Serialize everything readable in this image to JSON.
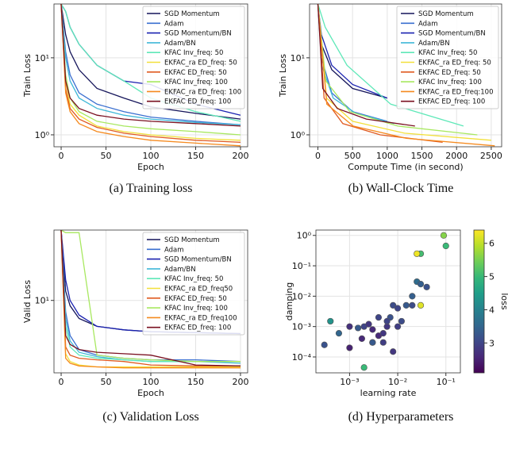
{
  "chart_data": [
    {
      "type": "line",
      "caption": "(a) Training loss",
      "xlabel": "Epoch",
      "ylabel": "Train Loss",
      "yscale": "log",
      "grid": true,
      "legend": "upper right",
      "xlim": [
        -8,
        208
      ],
      "xticks": [
        0,
        50,
        100,
        150,
        200
      ],
      "ylim": [
        0.7,
        50
      ],
      "yticks": [
        {
          "value": 1,
          "label": "10⁰"
        },
        {
          "value": 10,
          "label": "10¹"
        }
      ],
      "x": [
        0,
        5,
        10,
        20,
        40,
        70,
        100,
        150,
        200
      ],
      "series": [
        {
          "name": "SGD Momentum",
          "color": "#14145a",
          "values": [
            50,
            20,
            12,
            7,
            4,
            3,
            2.3,
            1.9,
            1.6
          ]
        },
        {
          "name": "Adam",
          "color": "#3a6fd0",
          "values": [
            50,
            12,
            6,
            3.5,
            2.5,
            2,
            1.7,
            1.5,
            1.35
          ]
        },
        {
          "name": "SGD Momentum/BN",
          "color": "#1a22b0",
          "values": [
            50,
            40,
            25,
            15,
            8,
            5,
            4.5,
            2.5,
            1.8
          ]
        },
        {
          "name": "Adam/BN",
          "color": "#40b8d8",
          "values": [
            50,
            10,
            5,
            3,
            2.2,
            1.8,
            1.6,
            1.45,
            1.35
          ]
        },
        {
          "name": "KFAC Inv_freq: 50",
          "color": "#5ee8b8",
          "values": [
            50,
            40,
            25,
            15,
            8,
            5,
            3,
            2,
            1.5
          ]
        },
        {
          "name": "EKFAC_ra ED_freq: 50",
          "color": "#f2e03a",
          "values": [
            50,
            5,
            2.5,
            1.8,
            1.3,
            1.1,
            1,
            0.9,
            0.85
          ]
        },
        {
          "name": "EKFAC ED_freq: 50",
          "color": "#e05a20",
          "values": [
            50,
            4,
            2.2,
            1.6,
            1.25,
            1.05,
            0.95,
            0.85,
            0.8
          ]
        },
        {
          "name": "KFAC Inv_freq: 100",
          "color": "#a8e860",
          "values": [
            50,
            6,
            3,
            2,
            1.5,
            1.3,
            1.2,
            1.1,
            1
          ]
        },
        {
          "name": "EKFAC_ra ED_freq: 100",
          "color": "#f58a1f",
          "values": [
            50,
            3.5,
            2,
            1.4,
            1.1,
            0.95,
            0.85,
            0.78,
            0.72
          ]
        },
        {
          "name": "EKFAC ED_freq: 100",
          "color": "#7a1020",
          "values": [
            50,
            5,
            3,
            2.2,
            1.8,
            1.6,
            1.5,
            1.4,
            1.3
          ]
        }
      ]
    },
    {
      "type": "line",
      "caption": "(b) Wall-Clock Time",
      "xlabel": "Compute Time (in second)",
      "ylabel": "Train Loss",
      "yscale": "log",
      "grid": true,
      "legend": "upper right",
      "xlim": [
        -120,
        2650
      ],
      "xticks": [
        0,
        500,
        1000,
        1500,
        2000,
        2500
      ],
      "ylim": [
        0.7,
        50
      ],
      "yticks": [
        {
          "value": 1,
          "label": "10⁰"
        },
        {
          "value": 10,
          "label": "10¹"
        }
      ],
      "series": [
        {
          "name": "SGD Momentum",
          "color": "#14145a",
          "x": [
            0,
            50,
            200,
            500,
            1000
          ],
          "values": [
            50,
            15,
            7,
            4,
            3
          ]
        },
        {
          "name": "Adam",
          "color": "#3a6fd0",
          "x": [
            0,
            50,
            200,
            500,
            1000
          ],
          "values": [
            50,
            10,
            3.5,
            2,
            1.5
          ]
        },
        {
          "name": "SGD Momentum/BN",
          "color": "#1a22b0",
          "x": [
            0,
            50,
            200,
            500,
            1000
          ],
          "values": [
            50,
            20,
            8,
            4.5,
            3
          ]
        },
        {
          "name": "Adam/BN",
          "color": "#40b8d8",
          "x": [
            0,
            55,
            220,
            550,
            1100
          ],
          "values": [
            50,
            8,
            3,
            1.9,
            1.4
          ]
        },
        {
          "name": "KFAC Inv_freq: 50",
          "color": "#5ee8b8",
          "x": [
            0,
            105,
            420,
            1050,
            2100
          ],
          "values": [
            50,
            25,
            8,
            2.5,
            1.3
          ]
        },
        {
          "name": "EKFAC_ra ED_freq: 50",
          "color": "#f2e03a",
          "x": [
            0,
            125,
            500,
            1250,
            2500
          ],
          "values": [
            50,
            3,
            1.5,
            1.05,
            0.85
          ]
        },
        {
          "name": "EKFAC ED_freq: 50",
          "color": "#e05a20",
          "x": [
            0,
            90,
            360,
            900,
            1800
          ],
          "values": [
            50,
            3,
            1.4,
            1.0,
            0.8
          ]
        },
        {
          "name": "KFAC Inv_freq: 100",
          "color": "#a8e860",
          "x": [
            0,
            115,
            460,
            1150,
            2300
          ],
          "values": [
            50,
            5,
            2,
            1.3,
            1
          ]
        },
        {
          "name": "EKFAC_ra ED_freq:100",
          "color": "#f58a1f",
          "x": [
            0,
            128,
            510,
            1275,
            2550
          ],
          "values": [
            50,
            2.5,
            1.3,
            0.9,
            0.72
          ]
        },
        {
          "name": "EKFAC ED_freq: 100",
          "color": "#7a1020",
          "x": [
            0,
            70,
            280,
            700,
            1400
          ],
          "values": [
            50,
            4,
            2.2,
            1.6,
            1.3
          ]
        }
      ]
    },
    {
      "type": "line",
      "caption": "(c) Validation Loss",
      "xlabel": "Epoch",
      "ylabel": "Valid Loss",
      "yscale": "log",
      "grid": true,
      "legend": "upper right",
      "xlim": [
        -8,
        208
      ],
      "xticks": [
        0,
        50,
        100,
        150,
        200
      ],
      "ylim": [
        2.4,
        40
      ],
      "yticks": [
        {
          "value": 10,
          "label": "10¹"
        }
      ],
      "x": [
        0,
        5,
        10,
        20,
        40,
        70,
        100,
        150,
        200
      ],
      "series": [
        {
          "name": "SGD Momentum",
          "color": "#14145a",
          "values": [
            40,
            12,
            9,
            7,
            6,
            5.6,
            5.4,
            5.3,
            5.2
          ]
        },
        {
          "name": "Adam",
          "color": "#3a6fd0",
          "values": [
            40,
            8,
            5,
            3.8,
            3.4,
            3.2,
            3.1,
            3.1,
            3.0
          ]
        },
        {
          "name": "SGD Momentum/BN",
          "color": "#1a22b0",
          "values": [
            40,
            15,
            10,
            7.5,
            6,
            5.6,
            5.4,
            5.3,
            5.2
          ]
        },
        {
          "name": "Adam/BN",
          "color": "#40b8d8",
          "values": [
            40,
            7,
            4.5,
            3.6,
            3.3,
            3.1,
            3.0,
            3.0,
            2.9
          ]
        },
        {
          "name": "KFAC Inv_freq: 50",
          "color": "#5ee8b8",
          "values": [
            40,
            6,
            4,
            3.4,
            3.2,
            3.1,
            3.0,
            3.0,
            3.0
          ]
        },
        {
          "name": "EKFAC_ra ED_freq50",
          "color": "#f2e03a",
          "values": [
            40,
            3.5,
            3,
            2.8,
            2.7,
            2.7,
            2.7,
            2.7,
            2.7
          ]
        },
        {
          "name": "EKFAC ED_freq: 50",
          "color": "#e05a20",
          "values": [
            40,
            4,
            3.4,
            3.2,
            3.1,
            3.0,
            2.8,
            2.75,
            2.75
          ]
        },
        {
          "name": "KFAC Inv_freq: 100",
          "color": "#a8e860",
          "values": [
            40,
            38,
            38,
            38,
            3.4,
            3.2,
            3.1,
            3.0,
            3.0
          ]
        },
        {
          "name": "EKFAC_ra ED_freq100",
          "color": "#f58a1f",
          "values": [
            40,
            3.2,
            2.9,
            2.75,
            2.7,
            2.65,
            2.65,
            2.65,
            2.65
          ]
        },
        {
          "name": "EKFAC ED_freq: 100",
          "color": "#7a1020",
          "values": [
            40,
            5,
            4.2,
            3.8,
            3.6,
            3.5,
            3.4,
            2.8,
            2.75
          ]
        }
      ]
    },
    {
      "type": "scatter",
      "caption": "(d) Hyperparameters",
      "xlabel": "learning rate",
      "ylabel": "damping",
      "colorbar_label": "loss",
      "xscale": "log",
      "yscale": "log",
      "grid": true,
      "colormap": "viridis",
      "xlim": [
        0.0002,
        0.2
      ],
      "ylim": [
        3e-05,
        1.5
      ],
      "clim": [
        2.1,
        6.4
      ],
      "xticks": [
        {
          "value": 0.001,
          "label": "10⁻³"
        },
        {
          "value": 0.01,
          "label": "10⁻²"
        },
        {
          "value": 0.1,
          "label": "10⁻¹"
        }
      ],
      "yticks": [
        {
          "value": 0.0001,
          "label": "10⁻⁴"
        },
        {
          "value": 0.001,
          "label": "10⁻³"
        },
        {
          "value": 0.01,
          "label": "10⁻²"
        },
        {
          "value": 0.1,
          "label": "10⁻¹"
        },
        {
          "value": 1,
          "label": "10⁰"
        }
      ],
      "cticks": [
        3,
        4,
        5,
        6
      ],
      "x": [
        0.0003,
        0.0004,
        0.0006,
        0.001,
        0.001,
        0.0015,
        0.002,
        0.0025,
        0.003,
        0.003,
        0.004,
        0.004,
        0.005,
        0.005,
        0.006,
        0.007,
        0.008,
        0.008,
        0.01,
        0.01,
        0.015,
        0.02,
        0.02,
        0.025,
        0.03,
        0.03,
        0.04,
        0.002,
        0.003,
        0.012,
        0.03,
        0.025,
        0.09,
        0.1,
        0.0018,
        0.006
      ],
      "y": [
        0.00025,
        0.0015,
        0.0006,
        0.0002,
        0.001,
        0.0009,
        0.001,
        0.0012,
        0.0008,
        0.0003,
        0.002,
        0.0005,
        0.0006,
        0.0003,
        0.001,
        0.002,
        0.005,
        0.00015,
        0.004,
        0.001,
        0.005,
        0.005,
        0.01,
        0.03,
        0.025,
        0.005,
        0.02,
        4.5e-05,
        0.0003,
        0.0015,
        0.25,
        0.25,
        1.0,
        0.45,
        0.0004,
        0.0015
      ],
      "values": [
        3.2,
        4.3,
        3.5,
        2.5,
        2.7,
        3.3,
        3.0,
        2.8,
        2.6,
        2.5,
        3.0,
        2.6,
        2.8,
        2.9,
        2.8,
        3.2,
        3.1,
        2.8,
        3.0,
        2.9,
        3.3,
        3.1,
        3.4,
        3.6,
        3.4,
        6.2,
        3.2,
        5.0,
        3.3,
        3.1,
        5.1,
        6.3,
        5.6,
        5.0,
        2.6,
        3.0
      ]
    }
  ]
}
